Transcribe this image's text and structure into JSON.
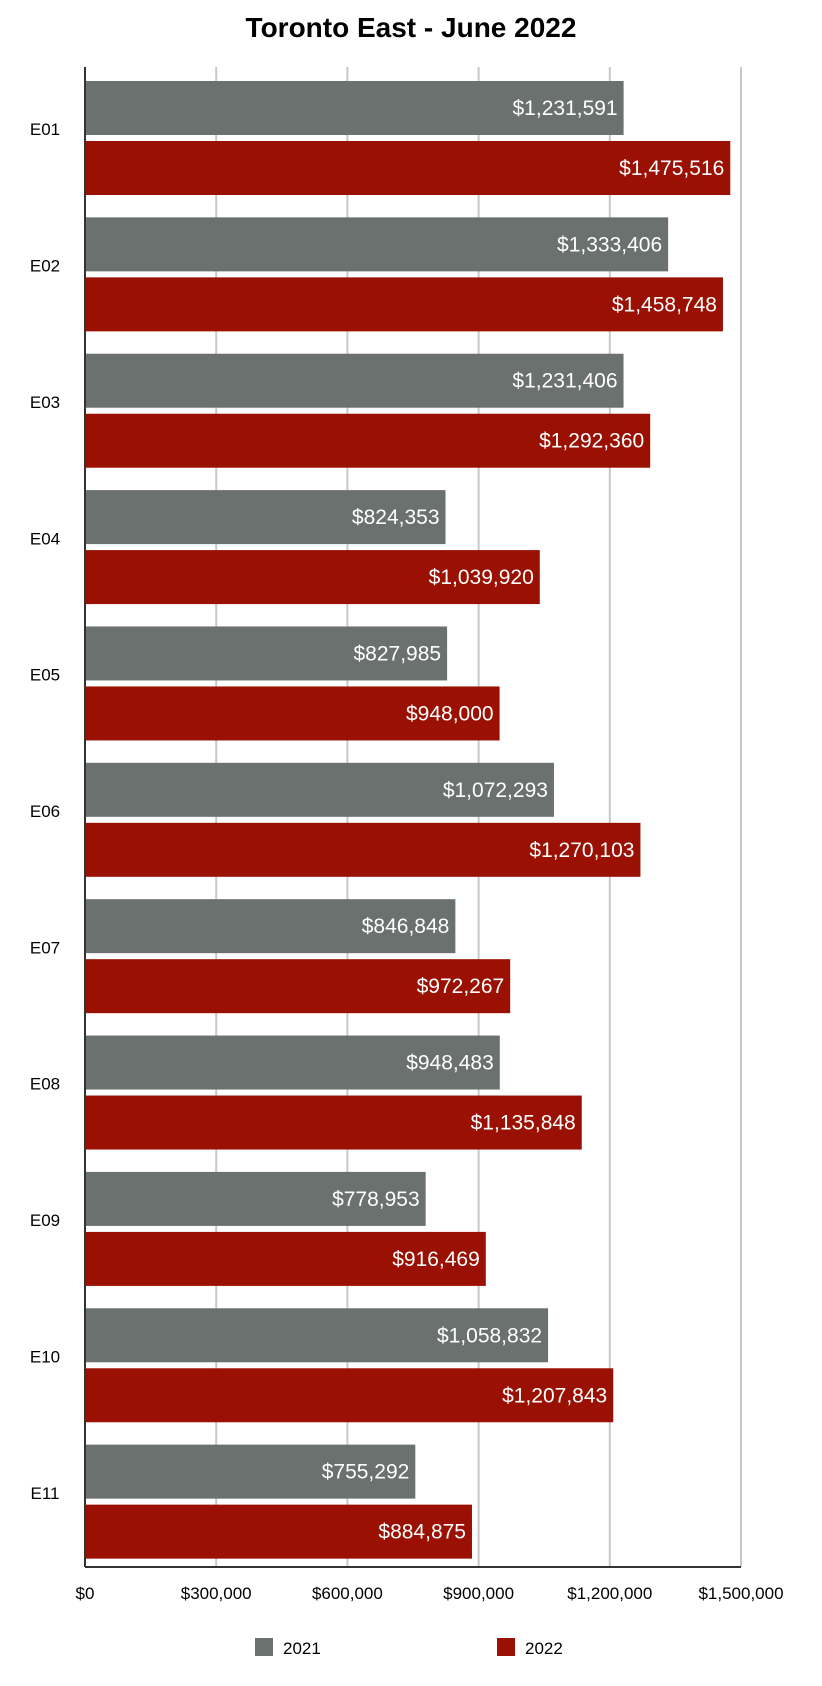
{
  "chart_data": {
    "type": "bar",
    "orientation": "horizontal",
    "title": "Toronto East - June 2022",
    "xlabel": "",
    "ylabel": "",
    "categories": [
      "E01",
      "E02",
      "E03",
      "E04",
      "E05",
      "E06",
      "E07",
      "E08",
      "E09",
      "E10",
      "E11"
    ],
    "series": [
      {
        "name": "2021",
        "color": "#6b716e",
        "values": [
          1231591,
          1333406,
          1231406,
          824353,
          827985,
          1072293,
          846848,
          948483,
          778953,
          1058832,
          755292
        ],
        "labels": [
          "$1,231,591",
          "$1,333,406",
          "$1,231,406",
          "$824,353",
          "$827,985",
          "$1,072,293",
          "$846,848",
          "$948,483",
          "$778,953",
          "$1,058,832",
          "$755,292"
        ]
      },
      {
        "name": "2022",
        "color": "#9a1104",
        "values": [
          1475516,
          1458748,
          1292360,
          1039920,
          948000,
          1270103,
          972267,
          1135848,
          916469,
          1207843,
          884875
        ],
        "labels": [
          "$1,475,516",
          "$1,458,748",
          "$1,292,360",
          "$1,039,920",
          "$948,000",
          "$1,270,103",
          "$972,267",
          "$1,135,848",
          "$916,469",
          "$1,207,843",
          "$884,875"
        ]
      }
    ],
    "xlim": [
      0,
      1500000
    ],
    "ticks": [
      0,
      300000,
      600000,
      900000,
      1200000,
      1500000
    ],
    "tick_labels": [
      "$0",
      "$300,000",
      "$600,000",
      "$900,000",
      "$1,200,000",
      "$1,500,000"
    ],
    "grid": true,
    "legend": "bottom"
  }
}
